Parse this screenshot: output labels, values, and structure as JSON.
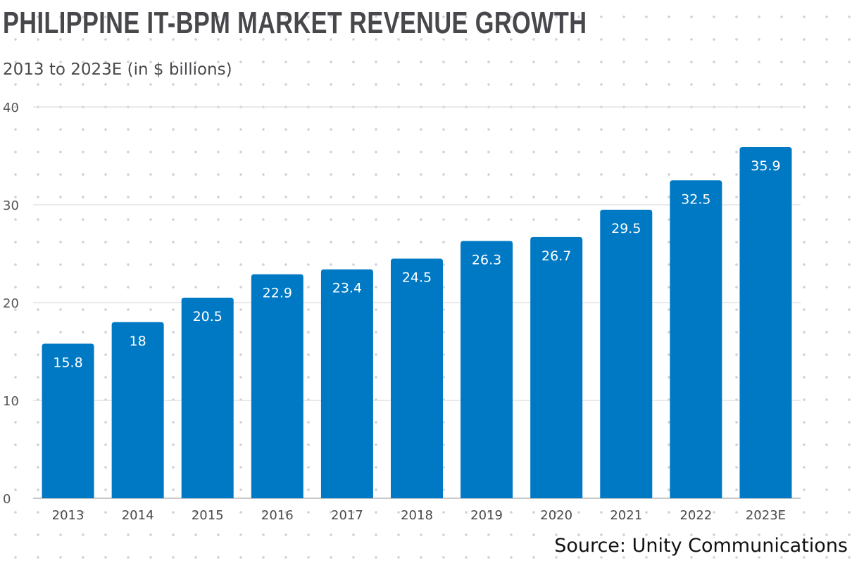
{
  "chart_data": {
    "type": "bar",
    "title": "PHILIPPINE IT-BPM MARKET REVENUE GROWTH",
    "subtitle": "2013 to 2023E (in $ billions)",
    "xlabel": "",
    "ylabel": "",
    "categories": [
      "2013",
      "2014",
      "2015",
      "2016",
      "2017",
      "2018",
      "2019",
      "2020",
      "2021",
      "2022",
      "2023E"
    ],
    "values": [
      15.8,
      18,
      20.5,
      22.9,
      23.4,
      24.5,
      26.3,
      26.7,
      29.5,
      32.5,
      35.9
    ],
    "data_labels": [
      "15.8",
      "18",
      "20.5",
      "22.9",
      "23.4",
      "24.5",
      "26.3",
      "26.7",
      "29.5",
      "32.5",
      "35.9"
    ],
    "ylim": [
      0,
      40
    ],
    "yticks": [
      0,
      10,
      20,
      30,
      40
    ],
    "ytick_labels": [
      "0",
      "10",
      "20",
      "30",
      "40"
    ],
    "grid": true,
    "legend": "none",
    "bar_color": "#0079c4",
    "source": "Source: Unity Communications"
  }
}
